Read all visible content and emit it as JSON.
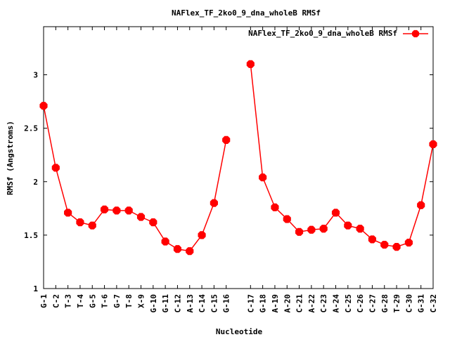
{
  "chart_data": {
    "type": "line",
    "title": "NAFlex_TF_2ko0_9_dna_wholeB RMSf",
    "xlabel": "Nucleotide",
    "ylabel": "RMSf (Angstroms)",
    "ylim": [
      1,
      3.45
    ],
    "yticks": [
      "1",
      "1.5",
      "2",
      "2.5",
      "3"
    ],
    "legend_position": "top-right",
    "series": [
      {
        "name": "NAFlex_TF_2ko0_9_dna_wholeB RMSf",
        "color": "#ff0000",
        "segments": [
          {
            "labels": [
              "G-1",
              "C-2",
              "T-3",
              "T-4",
              "G-5",
              "T-6",
              "G-7",
              "T-8",
              "X-9",
              "G-10",
              "G-11",
              "C-12",
              "A-13",
              "C-14",
              "C-15",
              "G-16"
            ],
            "x": [
              1,
              2,
              3,
              4,
              5,
              6,
              7,
              8,
              9,
              10,
              11,
              12,
              13,
              14,
              15,
              16
            ],
            "values": [
              2.71,
              2.13,
              1.71,
              1.62,
              1.59,
              1.74,
              1.73,
              1.73,
              1.67,
              1.62,
              1.44,
              1.37,
              1.35,
              1.5,
              1.8,
              2.39
            ]
          },
          {
            "labels": [
              "C-17",
              "G-18",
              "A-19",
              "A-20",
              "C-21",
              "A-22",
              "C-23",
              "A-24",
              "C-25",
              "C-26",
              "C-27",
              "G-28",
              "T-29",
              "C-30",
              "G-31",
              "C-32"
            ],
            "x": [
              18,
              19,
              20,
              21,
              22,
              23,
              24,
              25,
              26,
              27,
              28,
              29,
              30,
              31,
              32,
              33
            ],
            "values": [
              3.1,
              2.04,
              1.76,
              1.65,
              1.53,
              1.55,
              1.56,
              1.71,
              1.59,
              1.56,
              1.46,
              1.41,
              1.39,
              1.43,
              1.78,
              2.35
            ]
          }
        ]
      }
    ]
  }
}
